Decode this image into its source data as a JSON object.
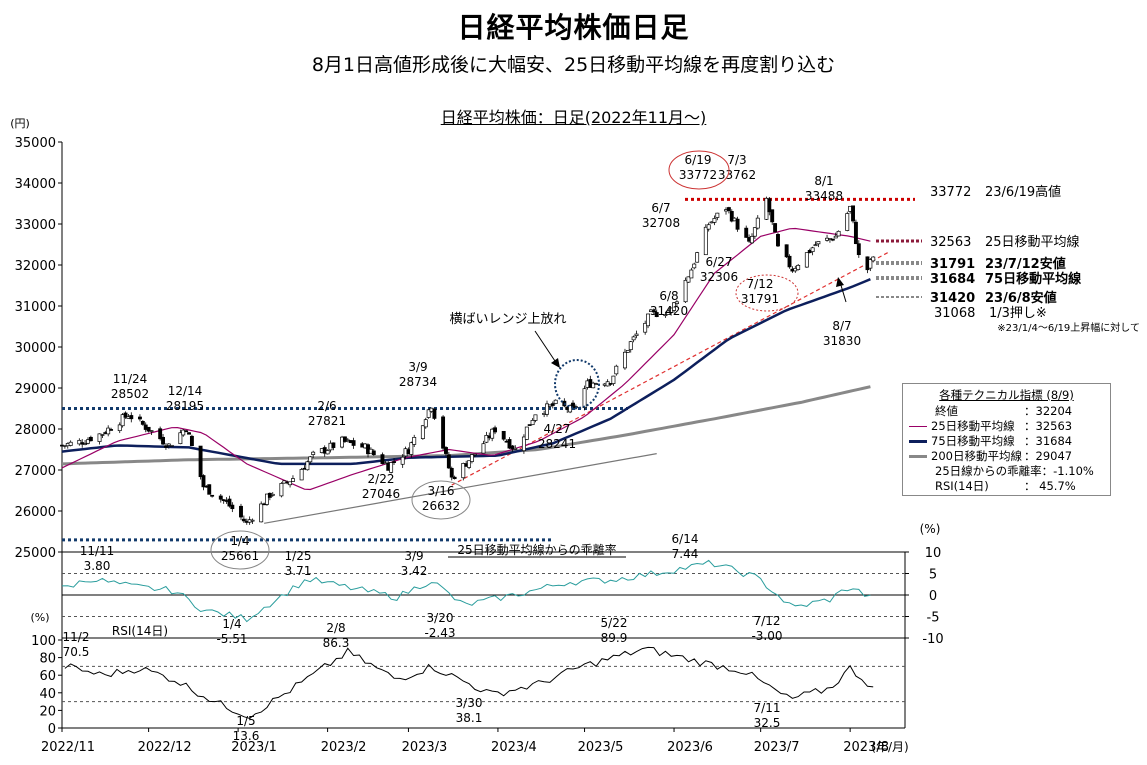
{
  "title": "日経平均株価日足",
  "subtitle": "8月1日高値形成後に大幅安、25日移動平均線を再度割り込む",
  "chart_title": "日経平均株価：日足(2022年11月～)",
  "colors": {
    "candle": "#000000",
    "ma25": "#990066",
    "ma75": "#0d1f5c",
    "ma200": "#888888",
    "dev": "#2a9d9d",
    "rsi": "#000000",
    "level_red": "#cc0000",
    "level_blue": "#123a6b",
    "trend_red": "#e03030",
    "circle_red": "#cc3333"
  },
  "chart_data": {
    "type": "line",
    "series_names": {
      "price": "日経平均株価",
      "ma25": "25日移動平均線",
      "ma75": "75日移動平均線",
      "ma200": "200日移動平均線",
      "deviation": "25日移動平均線からの乖離率",
      "rsi": "RSI(14日)"
    },
    "x_labels": [
      "2022/11",
      "2022/12",
      "2023/1",
      "2023/2",
      "2023/3",
      "2023/4",
      "2023/5",
      "2023/6",
      "2023/7",
      "2023/8"
    ],
    "x_unit": "(年/月)",
    "price_axis": {
      "unit": "(円)",
      "min": 25000,
      "max": 35000,
      "ticks": [
        25000,
        26000,
        27000,
        28000,
        29000,
        30000,
        31000,
        32000,
        33000,
        34000,
        35000
      ]
    },
    "dev_axis": {
      "unit": "(%)",
      "min": -10,
      "max": 10,
      "ticks": [
        10,
        5,
        0,
        -5,
        -10
      ]
    },
    "rsi_axis": {
      "unit": "(%)",
      "min": 0,
      "max": 100,
      "ticks": [
        100,
        80,
        60,
        40,
        20,
        0
      ]
    },
    "price_keypoints": [
      {
        "date": "2022-11-01",
        "close": 27600
      },
      {
        "date": "2022-11-08",
        "close": 27700
      },
      {
        "date": "2022-11-15",
        "close": 27900
      },
      {
        "date": "2022-11-24",
        "close": 28350
      },
      {
        "date": "2022-12-01",
        "close": 28000
      },
      {
        "date": "2022-12-08",
        "close": 27600
      },
      {
        "date": "2022-12-14",
        "close": 28050
      },
      {
        "date": "2022-12-20",
        "close": 26600
      },
      {
        "date": "2022-12-28",
        "close": 26200
      },
      {
        "date": "2023-01-04",
        "close": 25700
      },
      {
        "date": "2023-01-12",
        "close": 26400
      },
      {
        "date": "2023-01-20",
        "close": 26800
      },
      {
        "date": "2023-01-27",
        "close": 27350
      },
      {
        "date": "2023-02-06",
        "close": 27700
      },
      {
        "date": "2023-02-14",
        "close": 27550
      },
      {
        "date": "2023-02-22",
        "close": 27100
      },
      {
        "date": "2023-03-01",
        "close": 27500
      },
      {
        "date": "2023-03-09",
        "close": 28600
      },
      {
        "date": "2023-03-16",
        "close": 26800
      },
      {
        "date": "2023-03-24",
        "close": 27400
      },
      {
        "date": "2023-03-31",
        "close": 28000
      },
      {
        "date": "2023-04-07",
        "close": 27500
      },
      {
        "date": "2023-04-14",
        "close": 28400
      },
      {
        "date": "2023-04-21",
        "close": 28600
      },
      {
        "date": "2023-04-27",
        "close": 28450
      },
      {
        "date": "2023-05-02",
        "close": 29100
      },
      {
        "date": "2023-05-10",
        "close": 29200
      },
      {
        "date": "2023-05-17",
        "close": 30100
      },
      {
        "date": "2023-05-24",
        "close": 30800
      },
      {
        "date": "2023-05-31",
        "close": 30900
      },
      {
        "date": "2023-06-07",
        "close": 31900
      },
      {
        "date": "2023-06-13",
        "close": 33000
      },
      {
        "date": "2023-06-19",
        "close": 33400
      },
      {
        "date": "2023-06-27",
        "close": 32500
      },
      {
        "date": "2023-07-03",
        "close": 33600
      },
      {
        "date": "2023-07-07",
        "close": 32400
      },
      {
        "date": "2023-07-12",
        "close": 31900
      },
      {
        "date": "2023-07-20",
        "close": 32500
      },
      {
        "date": "2023-07-27",
        "close": 32700
      },
      {
        "date": "2023-08-01",
        "close": 33400
      },
      {
        "date": "2023-08-04",
        "close": 32200
      },
      {
        "date": "2023-08-07",
        "close": 31900
      },
      {
        "date": "2023-08-09",
        "close": 32204
      }
    ],
    "ma25_keypoints": [
      [
        "2022-11-01",
        27050
      ],
      [
        "2022-11-20",
        27700
      ],
      [
        "2022-12-10",
        28050
      ],
      [
        "2022-12-20",
        27900
      ],
      [
        "2023-01-04",
        27150
      ],
      [
        "2023-01-25",
        26500
      ],
      [
        "2023-02-10",
        26900
      ],
      [
        "2023-02-28",
        27300
      ],
      [
        "2023-03-15",
        27500
      ],
      [
        "2023-03-30",
        27350
      ],
      [
        "2023-04-15",
        27700
      ],
      [
        "2023-05-01",
        28300
      ],
      [
        "2023-05-15",
        29100
      ],
      [
        "2023-06-01",
        30300
      ],
      [
        "2023-06-15",
        31800
      ],
      [
        "2023-07-01",
        32700
      ],
      [
        "2023-07-12",
        32900
      ],
      [
        "2023-08-01",
        32700
      ],
      [
        "2023-08-09",
        32563
      ]
    ],
    "ma75_keypoints": [
      [
        "2022-11-01",
        27450
      ],
      [
        "2022-11-20",
        27600
      ],
      [
        "2022-12-15",
        27550
      ],
      [
        "2023-01-15",
        27150
      ],
      [
        "2023-02-10",
        27150
      ],
      [
        "2023-03-01",
        27300
      ],
      [
        "2023-04-01",
        27350
      ],
      [
        "2023-04-20",
        27650
      ],
      [
        "2023-05-10",
        28250
      ],
      [
        "2023-06-01",
        29200
      ],
      [
        "2023-06-20",
        30200
      ],
      [
        "2023-07-10",
        30900
      ],
      [
        "2023-08-01",
        31450
      ],
      [
        "2023-08-09",
        31684
      ]
    ],
    "ma200_keypoints": [
      [
        "2022-11-01",
        27150
      ],
      [
        "2022-12-15",
        27250
      ],
      [
        "2023-02-01",
        27300
      ],
      [
        "2023-03-15",
        27350
      ],
      [
        "2023-04-15",
        27500
      ],
      [
        "2023-05-15",
        27850
      ],
      [
        "2023-06-15",
        28250
      ],
      [
        "2023-07-15",
        28650
      ],
      [
        "2023-08-09",
        29047
      ]
    ],
    "deviation_keypoints": [
      [
        "2022-11-01",
        1.5
      ],
      [
        "2022-11-11",
        3.8
      ],
      [
        "2022-11-25",
        2.0
      ],
      [
        "2022-12-10",
        1.0
      ],
      [
        "2022-12-20",
        -3.5
      ],
      [
        "2023-01-04",
        -5.51
      ],
      [
        "2023-01-25",
        3.71
      ],
      [
        "2023-02-10",
        1.5
      ],
      [
        "2023-02-25",
        -0.5
      ],
      [
        "2023-03-09",
        3.42
      ],
      [
        "2023-03-20",
        -2.43
      ],
      [
        "2023-04-10",
        0.5
      ],
      [
        "2023-04-25",
        3.0
      ],
      [
        "2023-05-10",
        3.5
      ],
      [
        "2023-05-25",
        5.0
      ],
      [
        "2023-06-14",
        7.44
      ],
      [
        "2023-06-30",
        4.0
      ],
      [
        "2023-07-12",
        -3.0
      ],
      [
        "2023-07-25",
        -1.0
      ],
      [
        "2023-08-01",
        2.0
      ],
      [
        "2023-08-09",
        -1.1
      ]
    ],
    "rsi_keypoints": [
      [
        "2022-11-02",
        70.5
      ],
      [
        "2022-11-15",
        60
      ],
      [
        "2022-11-28",
        68
      ],
      [
        "2022-12-10",
        55
      ],
      [
        "2022-12-25",
        28
      ],
      [
        "2023-01-05",
        13.6
      ],
      [
        "2023-01-20",
        45
      ],
      [
        "2023-02-08",
        86.3
      ],
      [
        "2023-02-25",
        55
      ],
      [
        "2023-03-09",
        70
      ],
      [
        "2023-03-30",
        38.1
      ],
      [
        "2023-04-15",
        50
      ],
      [
        "2023-04-30",
        70
      ],
      [
        "2023-05-22",
        89.9
      ],
      [
        "2023-06-10",
        75
      ],
      [
        "2023-06-25",
        65
      ],
      [
        "2023-07-11",
        32.5
      ],
      [
        "2023-07-25",
        45
      ],
      [
        "2023-08-01",
        68
      ],
      [
        "2023-08-09",
        45.7
      ]
    ],
    "annotations": {
      "price": [
        {
          "date": "2022-11-24",
          "value": 28502,
          "label": [
            "11/24",
            "28502"
          ]
        },
        {
          "date": "2022-12-14",
          "value": 28195,
          "label": [
            "12/14",
            "28195"
          ]
        },
        {
          "date": "2023-01-04",
          "value": 25661,
          "label": [
            "1/4",
            "25661"
          ],
          "circle": true
        },
        {
          "date": "2023-02-06",
          "value": 27821,
          "label": [
            "2/6",
            "27821"
          ]
        },
        {
          "date": "2023-02-22",
          "value": 27046,
          "label": [
            "2/22",
            "27046"
          ]
        },
        {
          "date": "2023-03-09",
          "value": 28734,
          "label": [
            "3/9",
            "28734"
          ]
        },
        {
          "date": "2023-03-16",
          "value": 26632,
          "label": [
            "3/16",
            "26632"
          ],
          "circle": true
        },
        {
          "date": "2023-04-27",
          "value": 28241,
          "label": [
            "4/27",
            "28241"
          ]
        },
        {
          "date": "2023-06-07",
          "value": 32708,
          "label": [
            "6/7",
            "32708"
          ]
        },
        {
          "date": "2023-06-08",
          "value": 31420,
          "label": [
            "6/8",
            "31420"
          ]
        },
        {
          "date": "2023-06-19",
          "value": 33772,
          "label": [
            "6/19",
            "33772"
          ],
          "circle": true
        },
        {
          "date": "2023-06-27",
          "value": 32306,
          "label": [
            "6/27",
            "32306"
          ]
        },
        {
          "date": "2023-07-03",
          "value": 33762,
          "label": [
            "7/3",
            "33762"
          ]
        },
        {
          "date": "2023-07-12",
          "value": 31791,
          "label": [
            "7/12",
            "31791"
          ],
          "circle": true
        },
        {
          "date": "2023-08-01",
          "value": 33488,
          "label": [
            "8/1",
            "33488"
          ]
        },
        {
          "date": "2023-08-07",
          "value": 31830,
          "label": [
            "8/7",
            "31830"
          ]
        }
      ],
      "breakout_text": "横ばいレンジ上放れ",
      "deviation": [
        {
          "label": [
            "11/11",
            "3.80"
          ]
        },
        {
          "label": [
            "1/4",
            "-5.51"
          ]
        },
        {
          "label": [
            "1/25",
            "3.71"
          ]
        },
        {
          "label": [
            "3/9",
            "3.42"
          ]
        },
        {
          "label": [
            "3/20",
            "-2.43"
          ]
        },
        {
          "label": [
            "6/14",
            "7.44"
          ]
        },
        {
          "label": [
            "7/12",
            "-3.00"
          ]
        }
      ],
      "rsi": [
        {
          "label": [
            "11/2",
            "70.5"
          ]
        },
        {
          "label": [
            "1/5",
            "13.6"
          ]
        },
        {
          "label": [
            "2/8",
            "86.3"
          ]
        },
        {
          "label": [
            "3/30",
            "38.1"
          ]
        },
        {
          "label": [
            "5/22",
            "89.9"
          ]
        },
        {
          "label": [
            "7/11",
            "32.5"
          ]
        }
      ]
    },
    "range_levels": [
      28500,
      25661
    ],
    "levels": [
      {
        "value": "33772",
        "text": "23/6/19高値",
        "bold": false
      },
      {
        "value": "32563",
        "text": "25日移動平均線",
        "bold": false
      },
      {
        "value": "31791",
        "text": "23/7/12安値",
        "bold": true
      },
      {
        "value": "31684",
        "text": "75日移動平均線",
        "bold": true
      },
      {
        "value": "31420",
        "text": "23/6/8安値",
        "bold": true
      },
      {
        "value": "31068",
        "text": "1/3押し※",
        "bold": false
      }
    ],
    "levels_note": "※23/1/4～6/19上昇幅に対して",
    "dev_guides": [
      5,
      -5
    ],
    "rsi_guides": [
      70,
      30
    ]
  },
  "indicators": {
    "heading": "各種テクニカル指標 (8/9)",
    "rows": [
      {
        "label": "終値",
        "value": "：32204",
        "swatch": "none"
      },
      {
        "label": "25日移動平均線",
        "value": "：32563",
        "swatch": "ma25"
      },
      {
        "label": "75日移動平均線",
        "value": "：31684",
        "swatch": "ma75"
      },
      {
        "label": "200日移動平均線",
        "value": "：29047",
        "swatch": "ma200"
      },
      {
        "label": "25日線からの乖離率",
        "value": "：-1.10%",
        "swatch": "none"
      },
      {
        "label": "RSI(14日)",
        "value": "： 45.7%",
        "swatch": "none"
      }
    ]
  }
}
